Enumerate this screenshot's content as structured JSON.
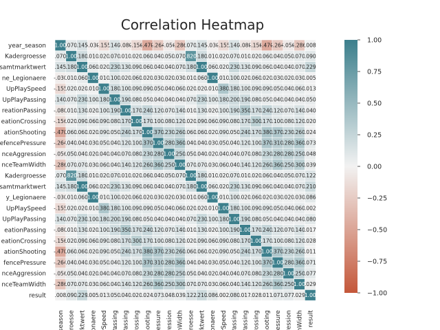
{
  "chart_data": {
    "type": "heatmap",
    "title": "Correlation Heatmap",
    "variables": [
      "year_season",
      "home_Kadergroesse",
      "home_Gesamtmarktwert",
      "home_Anteil_Legionaere",
      "home_buildUpPlaySpeed",
      "home_buildUpPlayPassing",
      "home_chanceCreationPassing",
      "home_chanceCreationCrossing",
      "home_chanceCreationShooting",
      "home_defencePressure",
      "home_defenceAggression",
      "home_defenceTeamWidth",
      "away_Kadergroesse",
      "away_Gesamtmarktwert",
      "away_Anteil_Legionaere",
      "away_buildUpPlaySpeed",
      "away_buildUpPlayPassing",
      "away_chanceCreationPassing",
      "away_chanceCreationCrossing",
      "away_chanceCreationShooting",
      "away_defencePressure",
      "away_defenceAggression",
      "away_defenceTeamWidth",
      "result"
    ],
    "y_tick_labels": [
      "year_season",
      "Kadergroesse",
      "samtmarktwert",
      "ne_Legionaere",
      "UpPlaySpeed",
      "UpPlayPassing",
      "reationPassing",
      "eationCrossing",
      "ationShooting",
      "efencePressure",
      "nceAggression",
      "nceTeamWidth",
      "Kadergroesse",
      "samtmarktwert",
      "y_Legionaere",
      "UpPlaySpeed",
      "UpPlayPassing",
      "eationPassing",
      "eationCrossing",
      "ationShooting",
      "fencePressure",
      "nceAggression",
      "nceTeamWidth",
      "result"
    ],
    "x_tick_labels": [
      "_season",
      "rgroesse",
      "marktwert",
      "Legionaere",
      "aySpeed",
      "Passing",
      "Passing",
      "Crossing",
      "Shooting",
      "Pressure",
      "ggression",
      "amWidth",
      "rgroesse",
      "marktwert",
      "egionaere",
      "aySpeed",
      "Passing",
      "Passing",
      "Crossing",
      "Shooting",
      "Pressure",
      "ggression",
      "amWidth",
      "result"
    ],
    "matrix": [
      [
        1.0,
        0.07,
        0.145,
        -0.03,
        -0.155,
        0.14,
        -0.08,
        -0.156,
        -0.47,
        -0.264,
        -0.056,
        -0.286,
        0.07,
        0.145,
        -0.03,
        -0.155,
        0.14,
        -0.08,
        -0.156,
        -0.47,
        -0.264,
        -0.056,
        -0.286,
        0.008
      ],
      [
        0.07,
        1.0,
        0.18,
        0.01,
        0.02,
        0.07,
        0.01,
        0.02,
        0.06,
        0.04,
        0.05,
        0.07,
        0.82,
        0.18,
        0.01,
        0.02,
        0.07,
        0.01,
        0.02,
        0.06,
        0.04,
        0.05,
        0.07,
        0.0899
      ],
      [
        0.145,
        0.18,
        1.0,
        0.06,
        0.02,
        0.23,
        0.13,
        0.09,
        0.06,
        0.04,
        0.04,
        0.07,
        0.18,
        1.0,
        0.06,
        0.02,
        0.23,
        0.13,
        0.09,
        0.06,
        0.04,
        0.04,
        0.07,
        0.229
      ],
      [
        -0.03,
        0.01,
        0.06,
        1.0,
        0.01,
        0.1,
        0.02,
        0.06,
        0.02,
        0.03,
        0.02,
        0.03,
        0.01,
        0.06,
        1.0,
        0.01,
        0.1,
        0.02,
        0.06,
        0.02,
        0.03,
        0.02,
        0.03,
        0.0048
      ],
      [
        -0.155,
        0.02,
        0.02,
        0.01,
        1.0,
        0.18,
        0.1,
        0.09,
        0.09,
        0.05,
        0.04,
        0.06,
        0.02,
        0.02,
        0.01,
        0.38,
        0.18,
        0.1,
        0.09,
        0.09,
        0.05,
        0.04,
        0.06,
        0.013
      ],
      [
        0.14,
        0.07,
        0.23,
        0.1,
        0.18,
        1.0,
        0.19,
        0.08,
        0.05,
        0.04,
        0.04,
        0.04,
        0.07,
        0.23,
        0.1,
        0.18,
        0.2,
        0.19,
        0.08,
        0.05,
        0.04,
        0.04,
        0.04,
        0.05
      ],
      [
        -0.08,
        0.01,
        0.13,
        0.02,
        0.1,
        0.19,
        1.0,
        0.17,
        0.24,
        0.12,
        0.07,
        0.14,
        0.01,
        0.13,
        0.02,
        0.1,
        0.19,
        0.35,
        0.17,
        0.24,
        0.12,
        0.07,
        0.14,
        0.04
      ],
      [
        -0.156,
        0.02,
        0.09,
        0.06,
        0.09,
        0.08,
        0.17,
        1.0,
        0.17,
        0.1,
        0.08,
        0.12,
        0.02,
        0.09,
        0.06,
        0.09,
        0.08,
        0.17,
        0.3,
        0.17,
        0.1,
        0.08,
        0.12,
        0.02
      ],
      [
        -0.47,
        0.06,
        0.06,
        0.02,
        0.09,
        0.05,
        0.24,
        0.17,
        1.0,
        0.37,
        0.23,
        0.26,
        0.06,
        0.06,
        0.02,
        0.09,
        0.05,
        0.24,
        0.17,
        0.38,
        0.37,
        0.23,
        0.26,
        0.024
      ],
      [
        -0.264,
        0.04,
        0.04,
        0.03,
        0.05,
        0.04,
        0.12,
        0.1,
        0.37,
        1.0,
        0.28,
        0.36,
        0.04,
        0.04,
        0.03,
        0.05,
        0.04,
        0.12,
        0.1,
        0.37,
        0.31,
        0.28,
        0.36,
        0.073
      ],
      [
        -0.056,
        0.05,
        0.04,
        0.02,
        0.04,
        0.04,
        0.07,
        0.08,
        0.23,
        0.28,
        1.0,
        0.25,
        0.05,
        0.04,
        0.02,
        0.04,
        0.04,
        0.07,
        0.08,
        0.23,
        0.28,
        0.28,
        0.25,
        0.048
      ],
      [
        -0.286,
        0.07,
        0.07,
        0.03,
        0.06,
        0.04,
        0.14,
        0.12,
        0.26,
        0.36,
        0.25,
        1.0,
        0.07,
        0.07,
        0.03,
        0.06,
        0.04,
        0.14,
        0.12,
        0.26,
        0.36,
        0.25,
        0.3,
        0.039
      ],
      [
        0.07,
        0.82,
        0.18,
        0.01,
        0.02,
        0.07,
        0.01,
        0.02,
        0.06,
        0.04,
        0.05,
        0.07,
        1.0,
        0.18,
        0.01,
        0.02,
        0.07,
        0.01,
        0.02,
        0.06,
        0.04,
        0.05,
        0.07,
        0.122
      ],
      [
        0.145,
        0.18,
        1.0,
        0.06,
        0.02,
        0.23,
        0.13,
        0.09,
        0.06,
        0.04,
        0.04,
        0.07,
        0.18,
        1.0,
        0.06,
        0.02,
        0.23,
        0.13,
        0.09,
        0.06,
        0.04,
        0.04,
        0.07,
        0.21
      ],
      [
        -0.03,
        0.01,
        0.06,
        1.0,
        0.01,
        0.1,
        0.02,
        0.06,
        0.02,
        0.03,
        0.02,
        0.03,
        0.01,
        0.06,
        1.0,
        0.01,
        0.1,
        0.02,
        0.06,
        0.02,
        0.03,
        0.02,
        0.03,
        0.086
      ],
      [
        -0.155,
        0.02,
        0.02,
        0.01,
        0.38,
        0.18,
        0.1,
        0.09,
        0.09,
        0.05,
        0.04,
        0.06,
        0.02,
        0.02,
        0.01,
        1.0,
        0.18,
        0.1,
        0.09,
        0.09,
        0.05,
        0.04,
        0.06,
        0.002
      ],
      [
        0.14,
        0.07,
        0.23,
        0.1,
        0.18,
        0.2,
        0.19,
        0.08,
        0.05,
        0.04,
        0.04,
        0.04,
        0.07,
        0.23,
        0.1,
        0.18,
        1.0,
        0.19,
        0.08,
        0.05,
        0.04,
        0.04,
        0.04,
        0.08
      ],
      [
        -0.08,
        0.01,
        0.13,
        0.02,
        0.1,
        0.19,
        0.35,
        0.17,
        0.24,
        0.12,
        0.07,
        0.14,
        0.01,
        0.13,
        0.02,
        0.1,
        0.19,
        1.0,
        0.17,
        0.24,
        0.12,
        0.07,
        0.14,
        0.017
      ],
      [
        -0.156,
        0.02,
        0.09,
        0.06,
        0.09,
        0.08,
        0.17,
        0.3,
        0.17,
        0.1,
        0.08,
        0.12,
        0.02,
        0.09,
        0.06,
        0.09,
        0.08,
        0.17,
        1.0,
        0.17,
        0.1,
        0.08,
        0.12,
        0.028
      ],
      [
        -0.47,
        0.06,
        0.06,
        0.02,
        0.09,
        0.05,
        0.24,
        0.17,
        0.38,
        0.37,
        0.23,
        0.26,
        0.06,
        0.06,
        0.02,
        0.09,
        0.05,
        0.24,
        0.17,
        1.0,
        0.37,
        0.23,
        0.26,
        0.011
      ],
      [
        -0.264,
        0.04,
        0.04,
        0.03,
        0.05,
        0.04,
        0.12,
        0.1,
        0.37,
        0.31,
        0.28,
        0.36,
        0.04,
        0.04,
        0.03,
        0.05,
        0.04,
        0.12,
        0.1,
        0.37,
        1.0,
        0.28,
        0.36,
        0.071
      ],
      [
        -0.056,
        0.05,
        0.04,
        0.02,
        0.04,
        0.04,
        0.07,
        0.08,
        0.23,
        0.28,
        0.28,
        0.25,
        0.05,
        0.04,
        0.02,
        0.04,
        0.04,
        0.07,
        0.08,
        0.23,
        0.28,
        1.0,
        0.25,
        0.077
      ],
      [
        -0.286,
        0.07,
        0.07,
        0.03,
        0.06,
        0.04,
        0.14,
        0.12,
        0.26,
        0.36,
        0.25,
        0.3,
        0.07,
        0.07,
        0.03,
        0.06,
        0.04,
        0.14,
        0.12,
        0.26,
        0.36,
        0.25,
        1.0,
        0.029
      ],
      [
        0.008,
        0.0899,
        0.229,
        0.0048,
        0.013,
        0.05,
        0.04,
        0.02,
        0.024,
        0.073,
        0.048,
        0.039,
        0.122,
        0.21,
        0.086,
        0.002,
        0.08,
        0.017,
        0.028,
        0.011,
        0.071,
        0.077,
        0.029,
        1.0
      ]
    ],
    "vmin": -1.0,
    "vmax": 1.0,
    "colorbar_ticks": [
      "1.00",
      "0.75",
      "0.50",
      "0.25",
      "0.00",
      "−0.25",
      "−0.50",
      "−0.75",
      "−1.00"
    ],
    "colormap": {
      "negative": "#c4573a",
      "center": "#f2f2f2",
      "positive": "#3c7f8c"
    },
    "annotations": "cell values shown with 3 decimals, leading zero dropped",
    "grid": false,
    "legend": "colorbar right"
  }
}
